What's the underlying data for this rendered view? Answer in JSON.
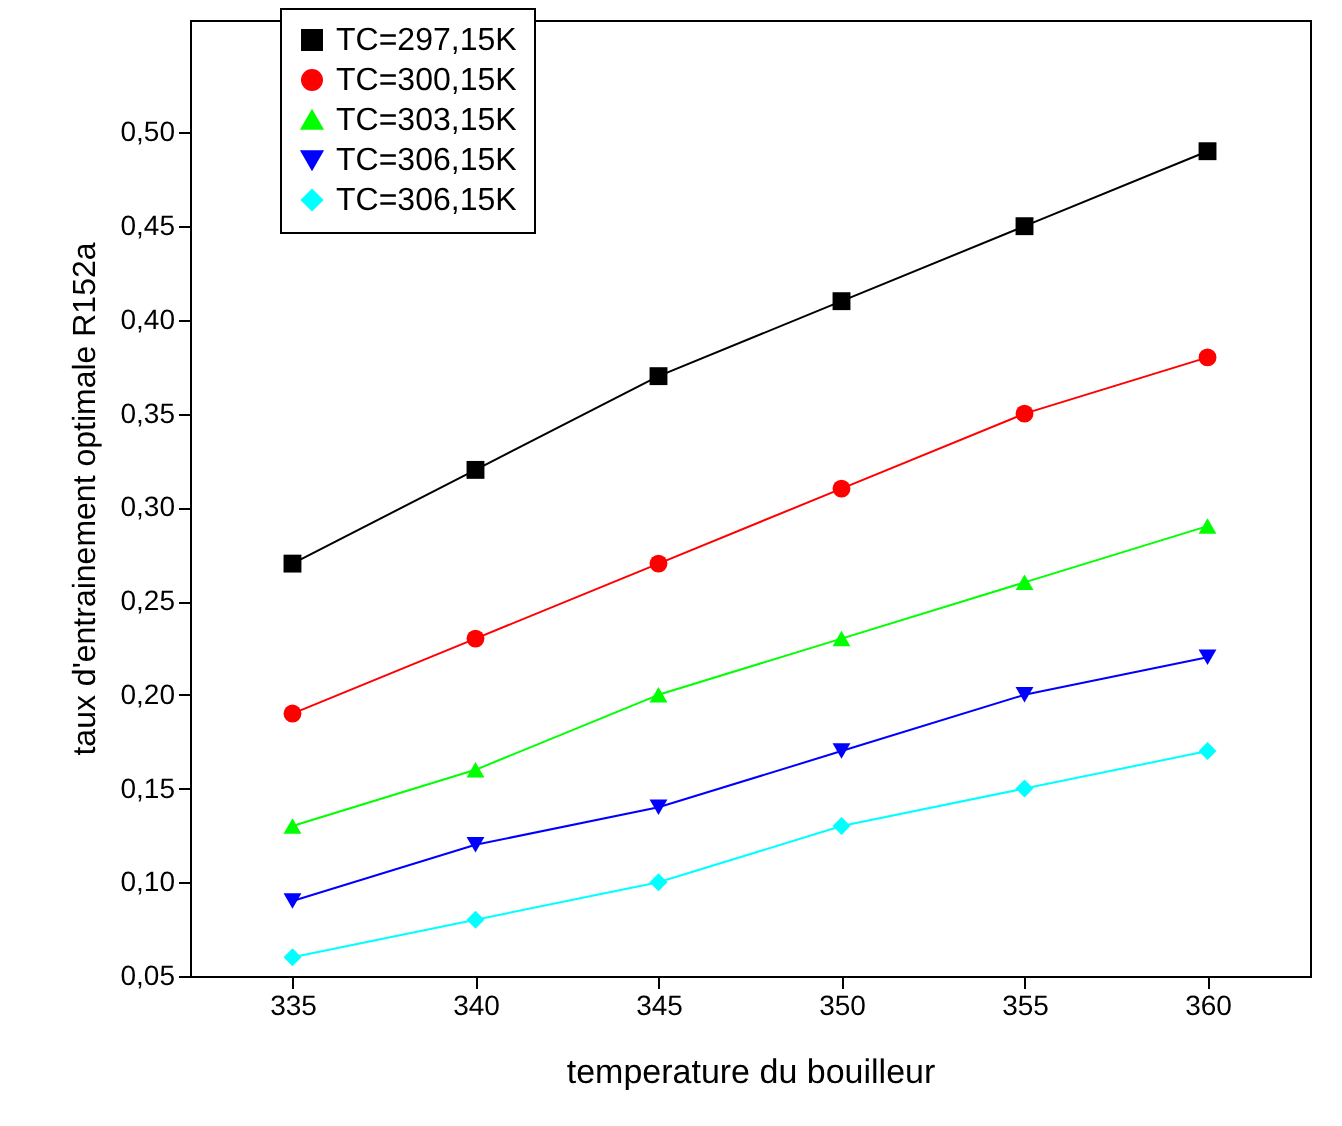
{
  "chart_data": {
    "type": "line",
    "xlabel": "temperature du bouilleur",
    "ylabel": "taux d'entrainement optimale R152a",
    "x": [
      335,
      340,
      345,
      350,
      355,
      360
    ],
    "series": [
      {
        "name": "TC=297,15K",
        "color": "#000000",
        "marker": "square",
        "values": [
          0.27,
          0.32,
          0.37,
          0.41,
          0.45,
          0.49
        ]
      },
      {
        "name": "TC=300,15K",
        "color": "#ff0000",
        "marker": "circle",
        "values": [
          0.19,
          0.23,
          0.27,
          0.31,
          0.35,
          0.38
        ]
      },
      {
        "name": "TC=303,15K",
        "color": "#00ff00",
        "marker": "triangle",
        "values": [
          0.13,
          0.16,
          0.2,
          0.23,
          0.26,
          0.29
        ]
      },
      {
        "name": "TC=306,15K",
        "color": "#0000ff",
        "marker": "triangle-down",
        "values": [
          0.09,
          0.12,
          0.14,
          0.17,
          0.2,
          0.22
        ]
      },
      {
        "name": "TC=306,15K",
        "color": "#00ffff",
        "marker": "diamond",
        "values": [
          0.06,
          0.08,
          0.1,
          0.13,
          0.15,
          0.17
        ]
      }
    ],
    "xlim": [
      332.2,
      362.8
    ],
    "xticks": [
      335,
      340,
      345,
      350,
      355,
      360
    ],
    "ylim": [
      0.05,
      0.56
    ],
    "yticks": [
      {
        "value": 0.05,
        "label": "0,05"
      },
      {
        "value": 0.1,
        "label": "0,10"
      },
      {
        "value": 0.15,
        "label": "0,15"
      },
      {
        "value": 0.2,
        "label": "0,20"
      },
      {
        "value": 0.25,
        "label": "0,25"
      },
      {
        "value": 0.3,
        "label": "0,30"
      },
      {
        "value": 0.35,
        "label": "0,35"
      },
      {
        "value": 0.4,
        "label": "0,40"
      },
      {
        "value": 0.45,
        "label": "0,45"
      },
      {
        "value": 0.5,
        "label": "0,50"
      }
    ],
    "grid": false,
    "legend": "top left",
    "line_style": "solid"
  }
}
